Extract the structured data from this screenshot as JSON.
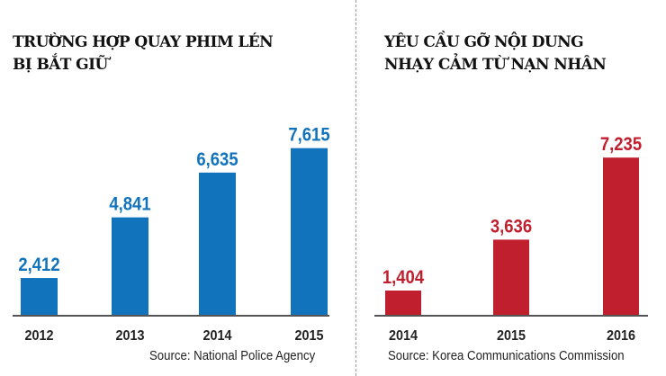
{
  "chart_data": [
    {
      "type": "bar",
      "title_lines": [
        "TRƯỜNG HỢP QUAY PHIM LÉN",
        "BỊ BẮT GIỮ"
      ],
      "categories": [
        "2012",
        "2013",
        "2014",
        "2015"
      ],
      "values": [
        2412,
        4841,
        6635,
        7615
      ],
      "labels": [
        "2,412",
        "4,841",
        "6,635",
        "7,615"
      ],
      "color": "#1173bb",
      "source": "Source: National Police Agency",
      "ylim": [
        900,
        8000
      ],
      "grid": false
    },
    {
      "type": "bar",
      "title_lines": [
        "YÊU CẦU GỠ NỘI DUNG",
        "NHẠY CẢM TỪ NẠN NHÂN"
      ],
      "categories": [
        "2014",
        "2015",
        "2016"
      ],
      "values": [
        1404,
        3636,
        7235
      ],
      "labels": [
        "1,404",
        "3,636",
        "7,235"
      ],
      "color": "#c01f2e",
      "source": "Source: Korea Communications Commission",
      "ylim": [
        300,
        7400
      ],
      "grid": false
    }
  ]
}
